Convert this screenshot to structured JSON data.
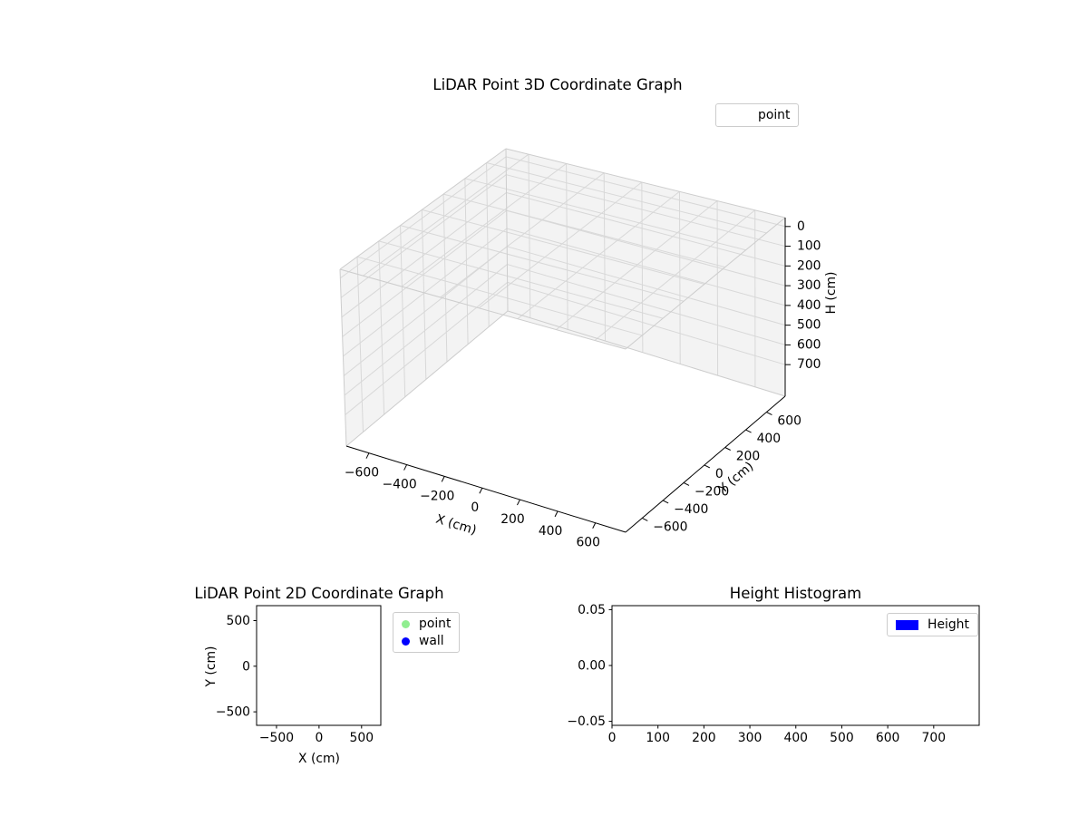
{
  "figure": {
    "background": "#ffffff"
  },
  "chart_data": [
    {
      "id": "plot3d",
      "type": "scatter3d",
      "title": "LiDAR Point 3D Coordinate Graph",
      "xlabel": "X (cm)",
      "ylabel": "Y (cm)",
      "zlabel": "H (cm)",
      "xlim": [
        -720,
        760
      ],
      "ylim": [
        -760,
        780
      ],
      "zlim": [
        -45,
        860
      ],
      "zaxis_inverted": true,
      "xticks": [
        -600,
        -400,
        -200,
        0,
        200,
        400,
        600
      ],
      "yticks": [
        -600,
        -400,
        -200,
        0,
        200,
        400,
        600
      ],
      "zticks": [
        0,
        100,
        200,
        300,
        400,
        500,
        600,
        700
      ],
      "grid": true,
      "pane_color": "#f3f3f3",
      "grid_color": "#d8d8d8",
      "legend": [
        {
          "label": "point",
          "marker": "none"
        }
      ],
      "series": [
        {
          "name": "point",
          "points": []
        }
      ]
    },
    {
      "id": "plot2d",
      "type": "scatter",
      "title": "LiDAR Point 2D Coordinate Graph",
      "xlabel": "X (cm)",
      "ylabel": "Y (cm)",
      "xlim": [
        -734,
        726
      ],
      "ylim": [
        -648,
        664
      ],
      "xticks": [
        -500,
        0,
        500
      ],
      "yticks": [
        -500,
        0,
        500
      ],
      "grid": false,
      "legend": [
        {
          "label": "point",
          "color": "#90ee90",
          "marker": "circle"
        },
        {
          "label": "wall",
          "color": "#0000ff",
          "marker": "circle"
        }
      ],
      "series": [
        {
          "name": "point",
          "points": []
        },
        {
          "name": "wall",
          "points": []
        }
      ]
    },
    {
      "id": "hist",
      "type": "histogram",
      "title": "Height Histogram",
      "xlabel": "",
      "ylabel": "",
      "xlim": [
        0,
        799
      ],
      "ylim": [
        -0.0536,
        0.0536
      ],
      "xticks": [
        0,
        100,
        200,
        300,
        400,
        500,
        600,
        700
      ],
      "yticks": [
        -0.05,
        0,
        0.05
      ],
      "ytick_decimals": 2,
      "grid": false,
      "legend": [
        {
          "label": "Height",
          "color": "#0000ff",
          "marker": "rect"
        }
      ],
      "values": []
    }
  ]
}
